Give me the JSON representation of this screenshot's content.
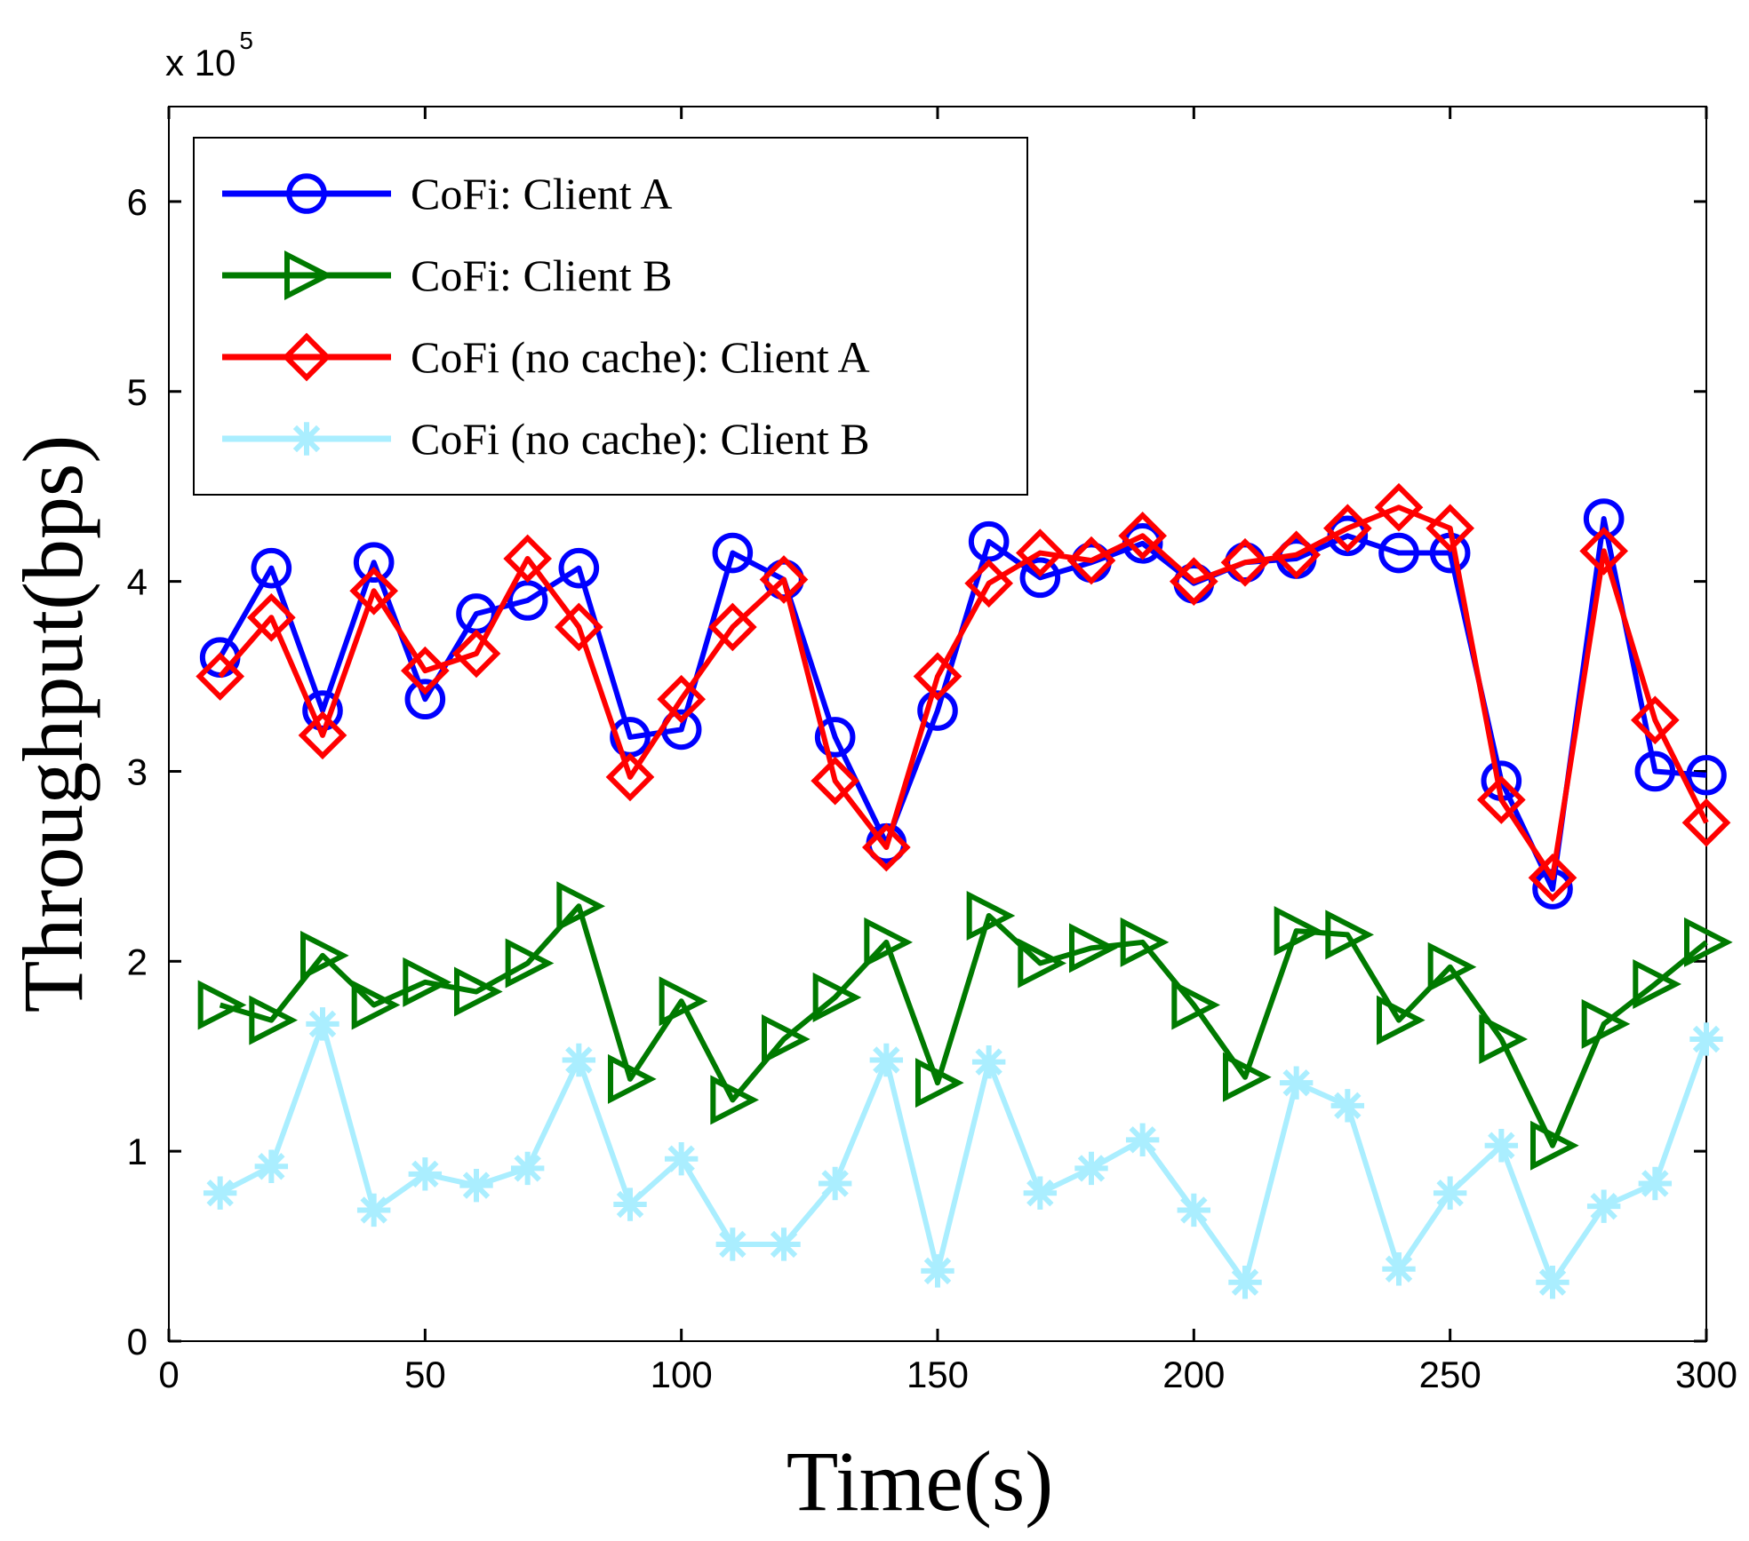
{
  "chart_data": {
    "type": "line",
    "title": "",
    "xlabel": "Time(s)",
    "ylabel": "Throughput(bps)",
    "y_exponent_base": "x 10",
    "y_exponent_power": "5",
    "xlim": [
      0,
      300
    ],
    "ylim": [
      0,
      6.5
    ],
    "xticks": [
      0,
      50,
      100,
      150,
      200,
      250,
      300
    ],
    "yticks": [
      0,
      1,
      2,
      3,
      4,
      5,
      6
    ],
    "x": [
      10,
      20,
      30,
      40,
      50,
      60,
      70,
      80,
      90,
      100,
      110,
      120,
      130,
      140,
      150,
      160,
      170,
      180,
      190,
      200,
      210,
      220,
      230,
      240,
      250,
      260,
      270,
      280,
      290,
      300
    ],
    "legend_position": "top-left",
    "series": [
      {
        "name": "CoFi: Client A",
        "color": "#0000ff",
        "marker": "circle",
        "values": [
          3.6,
          4.07,
          3.32,
          4.1,
          3.38,
          3.83,
          3.9,
          4.07,
          3.18,
          3.22,
          4.15,
          4.01,
          3.18,
          2.62,
          3.32,
          4.21,
          4.02,
          4.1,
          4.2,
          3.99,
          4.1,
          4.12,
          4.24,
          4.15,
          4.15,
          2.95,
          2.38,
          4.33,
          3.0,
          2.98
        ]
      },
      {
        "name": "CoFi: Client B",
        "color": "#007a00",
        "marker": "triangle-right",
        "values": [
          1.77,
          1.69,
          2.03,
          1.77,
          1.89,
          1.84,
          1.99,
          2.29,
          1.38,
          1.79,
          1.27,
          1.59,
          1.81,
          2.1,
          1.36,
          2.24,
          1.99,
          2.07,
          2.1,
          1.77,
          1.39,
          2.16,
          2.14,
          1.69,
          1.97,
          1.59,
          1.03,
          1.67,
          1.88,
          2.1
        ]
      },
      {
        "name": "CoFi (no cache): Client A",
        "color": "#ff0000",
        "marker": "diamond",
        "values": [
          3.5,
          3.81,
          3.19,
          3.95,
          3.53,
          3.62,
          4.12,
          3.76,
          2.97,
          3.38,
          3.76,
          4.01,
          2.95,
          2.6,
          3.5,
          3.99,
          4.15,
          4.11,
          4.24,
          4.0,
          4.1,
          4.14,
          4.28,
          4.39,
          4.28,
          2.85,
          2.44,
          4.16,
          3.27,
          2.73
        ]
      },
      {
        "name": "CoFi (no cache): Client B",
        "color": "#aaeeff",
        "marker": "plus",
        "values": [
          0.78,
          0.92,
          1.67,
          0.69,
          0.88,
          0.82,
          0.91,
          1.48,
          0.72,
          0.96,
          0.51,
          0.51,
          0.83,
          1.48,
          0.37,
          1.47,
          0.78,
          0.91,
          1.06,
          0.69,
          0.31,
          1.36,
          1.24,
          0.38,
          0.78,
          1.03,
          0.31,
          0.71,
          0.83,
          1.59
        ]
      }
    ]
  }
}
